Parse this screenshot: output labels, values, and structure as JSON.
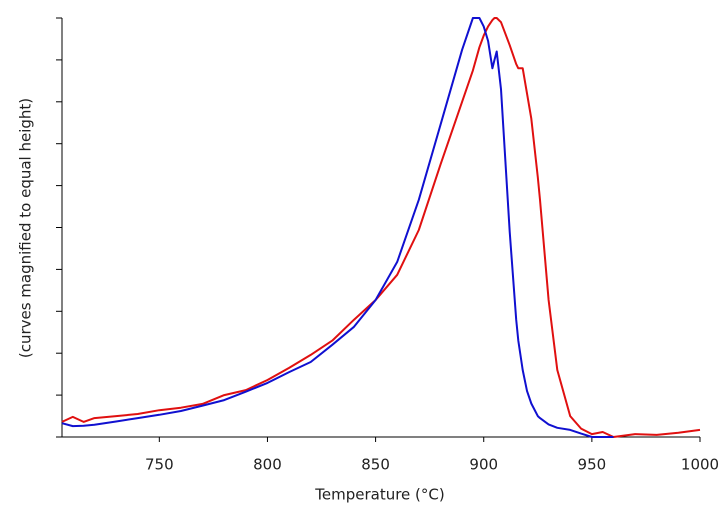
{
  "chart_data": {
    "type": "line",
    "x_label": "Temperature  (°C)",
    "y_label": "(curves magnified to equal height)",
    "xlim": [
      705,
      1000
    ],
    "xticks": [
      750,
      800,
      850,
      900,
      950,
      1000
    ],
    "ylim": [
      0,
      1
    ],
    "yticks": [
      0,
      0.1,
      0.2,
      0.3,
      0.4,
      0.5,
      0.6,
      0.7,
      0.8,
      0.9,
      1
    ],
    "x": [
      705,
      710,
      715,
      720,
      730,
      740,
      750,
      760,
      770,
      780,
      790,
      800,
      810,
      820,
      830,
      840,
      850,
      860,
      870,
      880,
      890,
      895,
      898,
      900,
      902,
      904,
      905,
      906,
      908,
      912,
      915,
      916,
      918,
      920,
      922,
      925,
      926,
      930,
      934,
      940,
      945,
      950,
      955,
      960,
      970,
      980,
      990,
      1000
    ],
    "series": [
      {
        "color": "#e01010",
        "values": [
          0.036,
          0.048,
          0.036,
          0.045,
          0.05,
          0.055,
          0.064,
          0.07,
          0.079,
          0.1,
          0.112,
          0.136,
          0.165,
          0.196,
          0.23,
          0.28,
          0.327,
          0.387,
          0.494,
          0.65,
          0.8,
          0.875,
          0.93,
          0.958,
          0.98,
          0.995,
          1.0,
          1.0,
          0.99,
          0.935,
          0.89,
          0.88,
          0.88,
          0.82,
          0.76,
          0.62,
          0.566,
          0.327,
          0.16,
          0.05,
          0.02,
          0.007,
          0.012,
          0.0,
          0.007,
          0.005,
          0.01,
          0.017
        ]
      },
      {
        "color": "#1010d0",
        "values": [
          0.033,
          0.026,
          0.027,
          0.029,
          0.037,
          0.045,
          0.053,
          0.062,
          0.075,
          0.088,
          0.108,
          0.129,
          0.155,
          0.179,
          0.22,
          0.263,
          0.327,
          0.418,
          0.566,
          0.745,
          0.924,
          1.0,
          1.0,
          0.98,
          0.945,
          0.88,
          0.9,
          0.92,
          0.83,
          0.49,
          0.28,
          0.23,
          0.16,
          0.11,
          0.08,
          0.05,
          0.045,
          0.03,
          0.022,
          0.017,
          0.008,
          0.0,
          0.0,
          0.0,
          null,
          null,
          null,
          null
        ]
      }
    ]
  }
}
